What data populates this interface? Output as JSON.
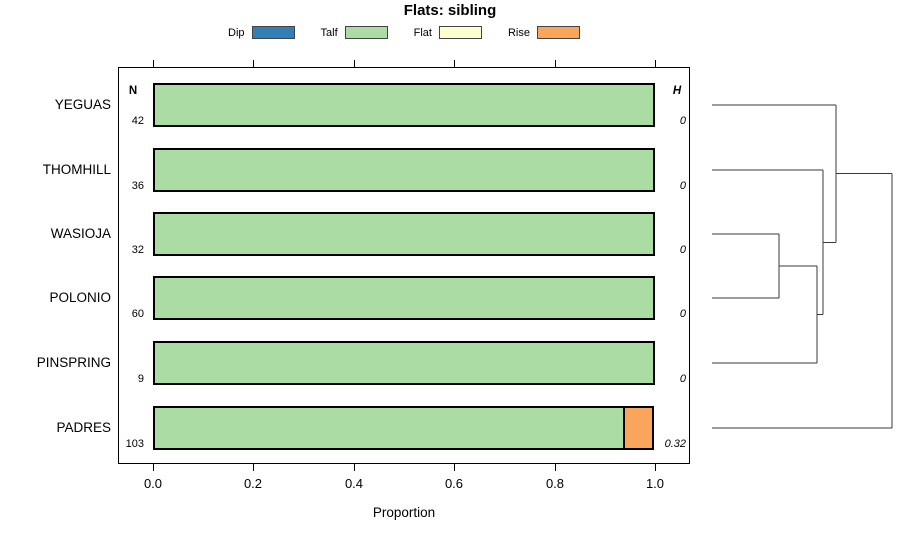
{
  "title": "Flats: sibling",
  "chart_data": {
    "type": "bar",
    "orientation": "horizontal-stacked",
    "title": "Flats: sibling",
    "xlabel": "Proportion",
    "xlim": [
      0.0,
      1.0
    ],
    "x_ticks": [
      0.0,
      0.2,
      0.4,
      0.6,
      0.8,
      1.0
    ],
    "grid": false,
    "legend_position": "top",
    "legend_items": [
      {
        "label": "Dip",
        "color": "#3080B5"
      },
      {
        "label": "Talf",
        "color": "#ABDCA4"
      },
      {
        "label": "Flat",
        "color": "#FDFDD0"
      },
      {
        "label": "Rise",
        "color": "#F9A65C"
      }
    ],
    "series_colors": {
      "Dip": "#3080B5",
      "Talf": "#ABDCA4",
      "Flat": "#FDFDD0",
      "Rise": "#F9A65C"
    },
    "col_headers": {
      "n": "N",
      "h": "H"
    },
    "categories": [
      "YEGUAS",
      "THOMHILL",
      "WASIOJA",
      "POLONIO",
      "PINSPRING",
      "PADRES"
    ],
    "rows": [
      {
        "label": "YEGUAS",
        "n": 42,
        "h": "0",
        "segments": [
          {
            "name": "Talf",
            "value": 1.0
          }
        ]
      },
      {
        "label": "THOMHILL",
        "n": 36,
        "h": "0",
        "segments": [
          {
            "name": "Talf",
            "value": 1.0
          }
        ]
      },
      {
        "label": "WASIOJA",
        "n": 32,
        "h": "0",
        "segments": [
          {
            "name": "Talf",
            "value": 1.0
          }
        ]
      },
      {
        "label": "POLONIO",
        "n": 60,
        "h": "0",
        "segments": [
          {
            "name": "Talf",
            "value": 1.0
          }
        ]
      },
      {
        "label": "PINSPRING",
        "n": 9,
        "h": "0",
        "segments": [
          {
            "name": "Talf",
            "value": 1.0
          }
        ]
      },
      {
        "label": "PADRES",
        "n": 103,
        "h": "0.32",
        "segments": [
          {
            "name": "Talf",
            "value": 0.94
          },
          {
            "name": "Rise",
            "value": 0.06
          }
        ]
      }
    ],
    "dendrogram": {
      "leaves": [
        "YEGUAS",
        "THOMHILL",
        "WASIOJA",
        "POLONIO",
        "PINSPRING",
        "PADRES"
      ],
      "merges": [
        {
          "a": "WASIOJA",
          "b": "POLONIO",
          "height": 0.372
        },
        {
          "a": "m0",
          "b": "PINSPRING",
          "height": 0.583
        },
        {
          "a": "THOMHILL",
          "b": "m1",
          "height": 0.617
        },
        {
          "a": "YEGUAS",
          "b": "m2",
          "height": 0.689
        },
        {
          "a": "m3",
          "b": "PADRES",
          "height": 1.0
        }
      ]
    }
  }
}
